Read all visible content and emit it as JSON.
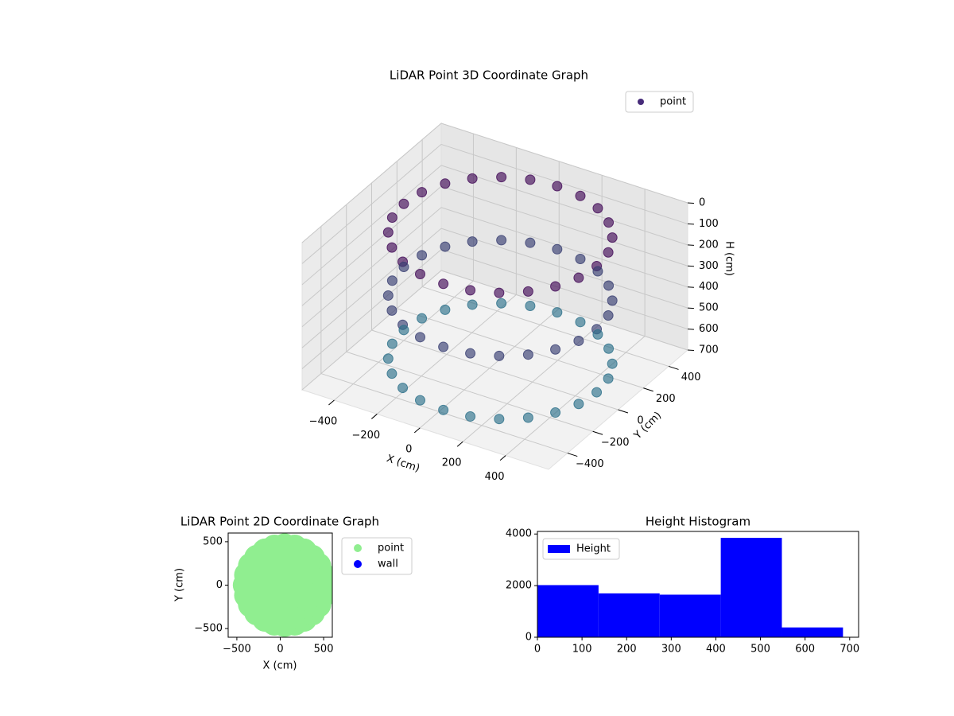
{
  "chart_data": [
    {
      "type": "scatter3d",
      "title": "LiDAR Point 3D Coordinate Graph",
      "xlabel": "X (cm)",
      "ylabel": "Y (cm)",
      "zlabel": "H (cm)",
      "series": [
        {
          "name": "point",
          "color": "#472c7a",
          "x": [
            500,
            485,
            440,
            368,
            275,
            167,
            50,
            -67,
            -175,
            -268,
            -340,
            -385,
            -400,
            -385,
            -340,
            -268,
            -175,
            -67,
            50,
            167,
            275,
            368,
            440,
            485,
            500,
            485,
            440,
            368,
            275,
            167,
            50,
            -67,
            -175,
            -268,
            -340,
            -385,
            -400,
            -385,
            -340,
            -268,
            -175,
            -67,
            50,
            167,
            275,
            368,
            440,
            485,
            500,
            485,
            440,
            368,
            275,
            167,
            50,
            -67,
            -175,
            -268,
            -340,
            -385,
            -400,
            -385,
            -340,
            -268,
            -175,
            -67,
            50,
            167,
            275,
            368,
            440,
            485
          ],
          "y": [
            0,
            117,
            225,
            318,
            390,
            435,
            450,
            435,
            390,
            318,
            225,
            117,
            0,
            -117,
            -225,
            -318,
            -390,
            -435,
            -450,
            -435,
            -390,
            -318,
            -225,
            -117,
            0,
            117,
            225,
            318,
            390,
            435,
            450,
            435,
            390,
            318,
            225,
            117,
            0,
            -117,
            -225,
            -318,
            -390,
            -435,
            -450,
            -435,
            -390,
            -318,
            -225,
            -117,
            0,
            117,
            225,
            318,
            390,
            435,
            450,
            435,
            390,
            318,
            225,
            117,
            0,
            -117,
            -225,
            -318,
            -390,
            -435,
            -450,
            -435,
            -390,
            -318,
            -225,
            -117
          ],
          "z": [
            50,
            50,
            50,
            50,
            50,
            50,
            50,
            50,
            50,
            50,
            50,
            50,
            50,
            50,
            50,
            50,
            50,
            50,
            50,
            50,
            50,
            50,
            50,
            50,
            350,
            350,
            350,
            350,
            350,
            350,
            350,
            350,
            350,
            350,
            350,
            350,
            350,
            350,
            350,
            350,
            350,
            350,
            350,
            350,
            350,
            350,
            350,
            350,
            650,
            650,
            650,
            650,
            650,
            650,
            650,
            650,
            650,
            650,
            650,
            650,
            650,
            650,
            650,
            650,
            650,
            650,
            650,
            650,
            650,
            650,
            650,
            650
          ]
        }
      ],
      "cmap": [
        "#440154",
        "#2a788e"
      ],
      "xlim": [
        -550,
        600
      ],
      "ylim": [
        -550,
        550
      ],
      "zlim": [
        0,
        700
      ],
      "zinverted": true,
      "xticks": [
        {
          "value": -400,
          "label": "−400"
        },
        {
          "value": -200,
          "label": "−200"
        },
        0,
        200,
        400
      ],
      "yticks": [
        {
          "value": -400,
          "label": "−400"
        },
        {
          "value": -200,
          "label": "−200"
        },
        0,
        200,
        400
      ],
      "zticks": [
        0,
        100,
        200,
        300,
        400,
        500,
        600,
        700
      ],
      "grid": true,
      "legend": "upper right"
    },
    {
      "type": "scatter",
      "title": "LiDAR Point 2D Coordinate Graph",
      "xlabel": "X (cm)",
      "ylabel": "Y (cm)",
      "series": [
        {
          "name": "point",
          "color": "#90ee90",
          "x": [
            500,
            485,
            440,
            368,
            275,
            167,
            50,
            -67,
            -175,
            -268,
            -340,
            -385,
            -400,
            -385,
            -340,
            -268,
            -175,
            -67,
            50,
            167,
            275,
            368,
            440,
            485,
            350,
            310,
            200,
            50,
            -100,
            -210,
            -250,
            -210,
            -100,
            50,
            200,
            310,
            200,
            125,
            -25,
            -100,
            -25,
            125,
            50
          ],
          "values": [
            0,
            117,
            225,
            318,
            390,
            435,
            450,
            435,
            390,
            318,
            225,
            117,
            0,
            -117,
            -225,
            -318,
            -390,
            -435,
            -450,
            -435,
            -390,
            -318,
            -225,
            -117,
            0,
            150,
            260,
            300,
            260,
            150,
            0,
            -150,
            -260,
            -300,
            -260,
            -150,
            0,
            130,
            130,
            0,
            -130,
            -130,
            0
          ]
        },
        {
          "name": "wall",
          "color": "#0000ff",
          "x": [],
          "values": []
        }
      ],
      "xlim": [
        -600,
        600
      ],
      "ylim": [
        -600,
        600
      ],
      "xticks": [
        {
          "value": -500,
          "label": "−500"
        },
        0,
        500
      ],
      "yticks": [
        {
          "value": -500,
          "label": "−500"
        },
        0,
        500
      ],
      "legend": "outside right"
    },
    {
      "type": "histogram",
      "title": "Height Histogram",
      "series": [
        {
          "name": "Height",
          "color": "#0000ff"
        }
      ],
      "bins": [
        0,
        137,
        274,
        411,
        548,
        685
      ],
      "values": [
        2020,
        1700,
        1650,
        3850,
        380
      ],
      "xlim": [
        0,
        720
      ],
      "ylim": [
        0,
        4100
      ],
      "xticks": [
        0,
        100,
        200,
        300,
        400,
        500,
        600,
        700
      ],
      "yticks": [
        0,
        2000,
        4000
      ],
      "legend": "upper left"
    }
  ]
}
